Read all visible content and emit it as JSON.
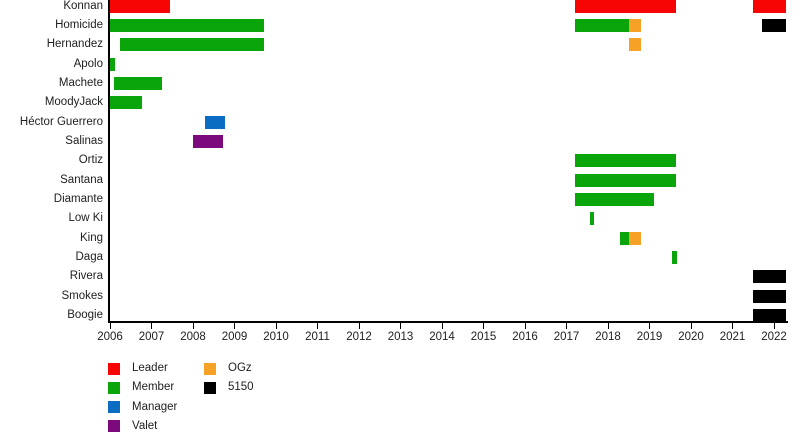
{
  "chart_data": {
    "type": "gantt-timeline",
    "title": "",
    "x_axis": {
      "start": 2006,
      "end": 2022,
      "tick_step": 1,
      "tick_labels": [
        "2006",
        "2007",
        "2008",
        "2009",
        "2010",
        "2011",
        "2012",
        "2013",
        "2014",
        "2015",
        "2016",
        "2017",
        "2018",
        "2019",
        "2020",
        "2021",
        "2022"
      ],
      "bars_extend_to": 2022.3
    },
    "grid": "off",
    "legend_position": "bottom-left",
    "colors": {
      "Leader": "#f70505",
      "Member": "#0aa50a",
      "Manager": "#0b6dc2",
      "Valet": "#7c0a7c",
      "OGz": "#f6a227",
      "5150": "#000000"
    },
    "rows": [
      {
        "label": "Konnan",
        "bars": [
          {
            "start": 2006.0,
            "end": 2007.45,
            "role": "Leader"
          },
          {
            "start": 2017.2,
            "end": 2019.63,
            "role": "Leader"
          },
          {
            "start": 2021.5,
            "end": 2022.3,
            "role": "Leader"
          }
        ]
      },
      {
        "label": "Homicide",
        "bars": [
          {
            "start": 2006.0,
            "end": 2009.7,
            "role": "Member"
          },
          {
            "start": 2017.2,
            "end": 2018.5,
            "role": "Member"
          },
          {
            "start": 2018.5,
            "end": 2018.8,
            "role": "OGz"
          },
          {
            "start": 2021.7,
            "end": 2022.3,
            "role": "5150"
          }
        ]
      },
      {
        "label": "Hernandez",
        "bars": [
          {
            "start": 2006.25,
            "end": 2009.7,
            "role": "Member"
          },
          {
            "start": 2018.5,
            "end": 2018.8,
            "role": "OGz"
          }
        ]
      },
      {
        "label": "Apolo",
        "bars": [
          {
            "start": 2006.0,
            "end": 2006.13,
            "role": "Member"
          }
        ]
      },
      {
        "label": "Machete",
        "bars": [
          {
            "start": 2006.1,
            "end": 2007.25,
            "role": "Member"
          }
        ]
      },
      {
        "label": "MoodyJack",
        "bars": [
          {
            "start": 2006.0,
            "end": 2006.78,
            "role": "Member"
          }
        ]
      },
      {
        "label": "Héctor Guerrero",
        "bars": [
          {
            "start": 2008.3,
            "end": 2008.76,
            "role": "Manager"
          }
        ]
      },
      {
        "label": "Salinas",
        "bars": [
          {
            "start": 2008.0,
            "end": 2008.72,
            "role": "Valet"
          }
        ]
      },
      {
        "label": "Ortiz",
        "bars": [
          {
            "start": 2017.2,
            "end": 2019.65,
            "role": "Member"
          }
        ]
      },
      {
        "label": "Santana",
        "bars": [
          {
            "start": 2017.2,
            "end": 2019.65,
            "role": "Member"
          }
        ]
      },
      {
        "label": "Diamante",
        "bars": [
          {
            "start": 2017.2,
            "end": 2019.1,
            "role": "Member"
          }
        ]
      },
      {
        "label": "Low Ki",
        "bars": [
          {
            "start": 2017.57,
            "end": 2017.66,
            "role": "Member"
          }
        ]
      },
      {
        "label": "King",
        "bars": [
          {
            "start": 2018.3,
            "end": 2018.5,
            "role": "Member"
          },
          {
            "start": 2018.5,
            "end": 2018.8,
            "role": "OGz"
          }
        ]
      },
      {
        "label": "Daga",
        "bars": [
          {
            "start": 2019.54,
            "end": 2019.66,
            "role": "Member"
          }
        ]
      },
      {
        "label": "Rivera",
        "bars": [
          {
            "start": 2021.5,
            "end": 2022.3,
            "role": "5150"
          }
        ]
      },
      {
        "label": "Smokes",
        "bars": [
          {
            "start": 2021.5,
            "end": 2022.3,
            "role": "5150"
          }
        ]
      },
      {
        "label": "Boogie",
        "bars": [
          {
            "start": 2021.5,
            "end": 2022.3,
            "role": "5150"
          }
        ]
      }
    ],
    "legend": [
      {
        "label": "Leader",
        "color": "#f70505"
      },
      {
        "label": "Member",
        "color": "#0aa50a"
      },
      {
        "label": "Manager",
        "color": "#0b6dc2"
      },
      {
        "label": "Valet",
        "color": "#7c0a7c"
      },
      {
        "label": "OGz",
        "color": "#f6a227"
      },
      {
        "label": "5150",
        "color": "#000000"
      }
    ]
  }
}
